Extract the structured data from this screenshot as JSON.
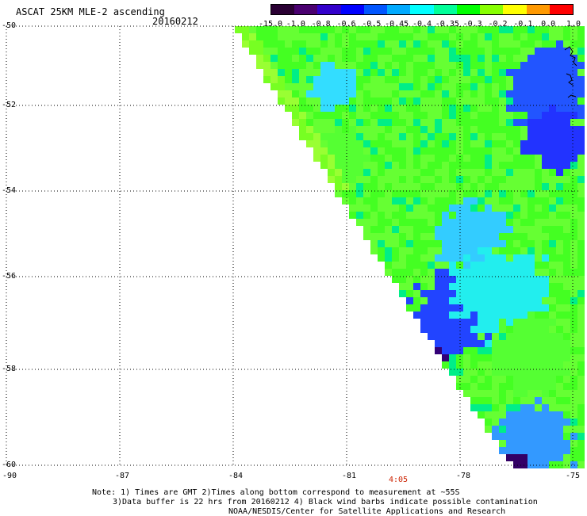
{
  "header": {
    "title": "ASCAT 25KM MLE-2 ascending",
    "date": "20160212"
  },
  "colorbar": {
    "labels": [
      "-15.0",
      "-1.0",
      "-0.8",
      "-0.6",
      "-0.5",
      "-0.45",
      "-0.4",
      "-0.35",
      "-0.3",
      "-0.2",
      "-0.1",
      "0.0",
      "1.0"
    ],
    "colors": [
      "#2a0033",
      "#4a0070",
      "#3300cc",
      "#0000ff",
      "#0055ff",
      "#00aaff",
      "#00ffff",
      "#00ff99",
      "#00ff00",
      "#88ff00",
      "#ffff00",
      "#ff9900",
      "#ff0000"
    ]
  },
  "axes": {
    "y_labels": [
      "-50",
      "-52",
      "-54",
      "-56",
      "-58",
      "-60"
    ],
    "x_labels": [
      "-90",
      "-87",
      "-84",
      "-81",
      "-78",
      "-75"
    ]
  },
  "time_label": "4:05",
  "notes": {
    "line1": "Note: 1) Times are GMT 2)Times along bottom correspond to measurement at ~55S",
    "line2": "3)Data buffer is 22 hrs from 20160212 4) Black wind barbs indicate possible contamination",
    "line3": "NOAA/NESDIS/Center for Satellite Applications and Research"
  }
}
